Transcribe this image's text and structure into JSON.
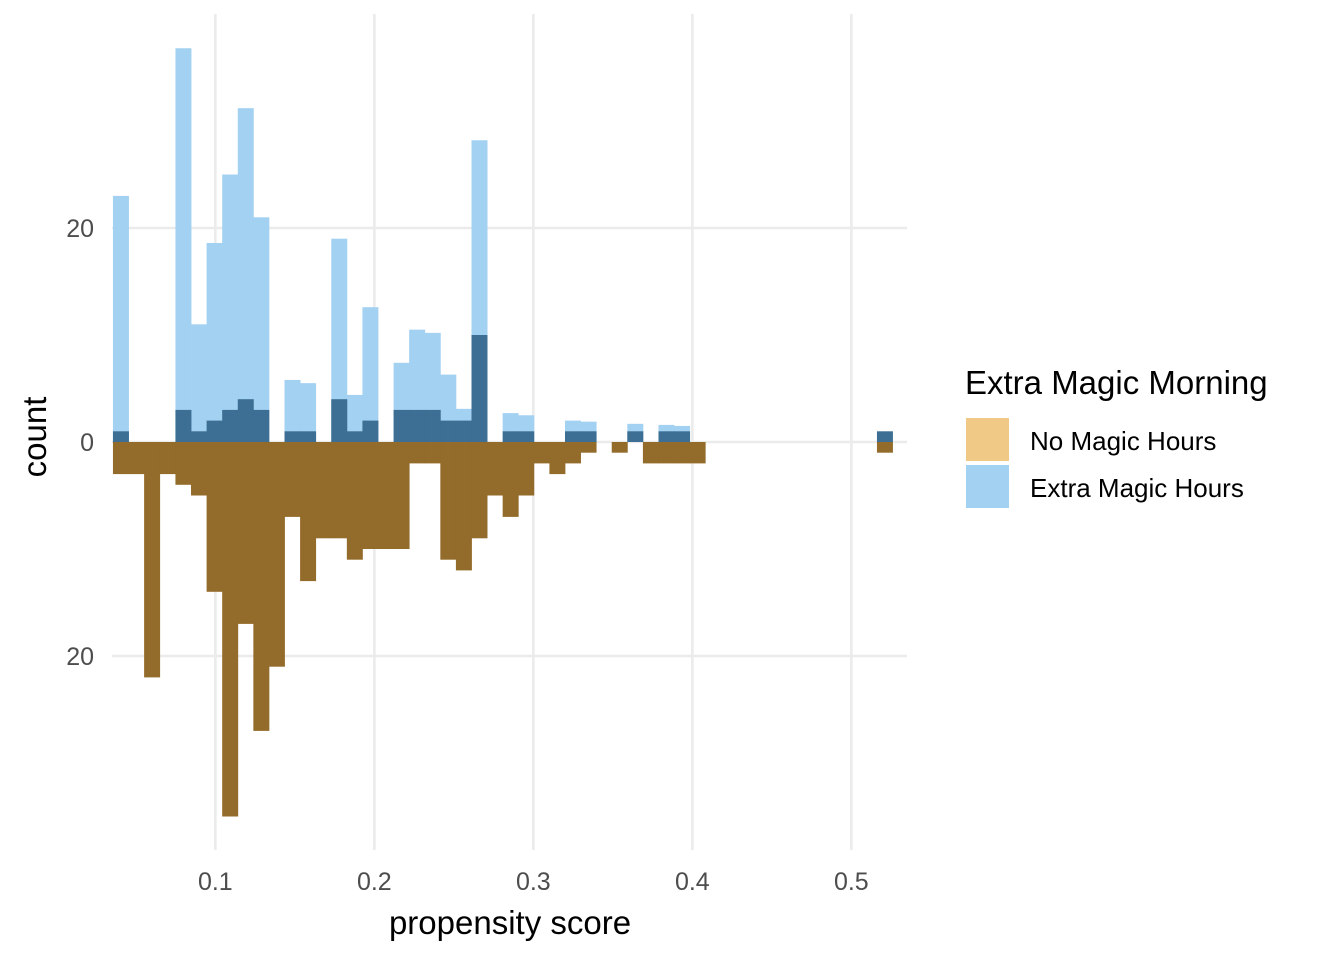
{
  "chart_data": {
    "type": "bar",
    "subtype": "mirrored histogram",
    "xlabel": "propensity score",
    "ylabel": "count",
    "xlim": [
      0.035,
      0.535
    ],
    "x_ticks": [
      0.1,
      0.2,
      0.3,
      0.4,
      0.5
    ],
    "x_tick_labels": [
      "0.1",
      "0.2",
      "0.3",
      "0.4",
      "0.5"
    ],
    "y_ticks": [
      20,
      0,
      -20
    ],
    "y_tick_labels": [
      "20",
      "0",
      "20"
    ],
    "ylim": [
      -38,
      36
    ],
    "grid": true,
    "legend": {
      "title": "Extra Magic Morning",
      "position": "right",
      "entries": [
        {
          "label": "No Magic Hours",
          "color": "#f0c987"
        },
        {
          "label": "Extra Magic Hours",
          "color": "#a3d1f2"
        }
      ]
    },
    "bin_width": 0.0098,
    "series": [
      {
        "name": "Extra Magic Hours",
        "color": "#a3d1f2",
        "bins": [
          {
            "x": 0.0405,
            "y": 23
          },
          {
            "x": 0.0798,
            "y": 36.8
          },
          {
            "x": 0.0896,
            "y": 11
          },
          {
            "x": 0.0994,
            "y": 18.6
          },
          {
            "x": 0.1092,
            "y": 25
          },
          {
            "x": 0.119,
            "y": 31.2
          },
          {
            "x": 0.1288,
            "y": 21
          },
          {
            "x": 0.1484,
            "y": 5.8
          },
          {
            "x": 0.1582,
            "y": 5.5
          },
          {
            "x": 0.168,
            "y": 0
          },
          {
            "x": 0.1778,
            "y": 19
          },
          {
            "x": 0.1876,
            "y": 4.4
          },
          {
            "x": 0.1974,
            "y": 12.6
          },
          {
            "x": 0.217,
            "y": 7.4
          },
          {
            "x": 0.2268,
            "y": 10.5
          },
          {
            "x": 0.2366,
            "y": 10.2
          },
          {
            "x": 0.2464,
            "y": 6.3
          },
          {
            "x": 0.2562,
            "y": 3.1
          },
          {
            "x": 0.266,
            "y": 28.2
          },
          {
            "x": 0.2856,
            "y": 2.7
          },
          {
            "x": 0.2954,
            "y": 2.5
          },
          {
            "x": 0.3248,
            "y": 2.0
          },
          {
            "x": 0.3346,
            "y": 1.9
          },
          {
            "x": 0.364,
            "y": 1.7
          },
          {
            "x": 0.3836,
            "y": 1.6
          },
          {
            "x": 0.3934,
            "y": 1.5
          }
        ]
      },
      {
        "name": "overlap (treated count)",
        "color": "#3d6e93",
        "bins": [
          {
            "x": 0.0405,
            "y": 1
          },
          {
            "x": 0.0798,
            "y": 3
          },
          {
            "x": 0.0896,
            "y": 1
          },
          {
            "x": 0.0994,
            "y": 2
          },
          {
            "x": 0.1092,
            "y": 3
          },
          {
            "x": 0.119,
            "y": 4
          },
          {
            "x": 0.1288,
            "y": 3
          },
          {
            "x": 0.1484,
            "y": 1
          },
          {
            "x": 0.1582,
            "y": 1
          },
          {
            "x": 0.1778,
            "y": 4
          },
          {
            "x": 0.1876,
            "y": 1
          },
          {
            "x": 0.1974,
            "y": 2
          },
          {
            "x": 0.217,
            "y": 3
          },
          {
            "x": 0.2268,
            "y": 3
          },
          {
            "x": 0.2366,
            "y": 3
          },
          {
            "x": 0.2464,
            "y": 2
          },
          {
            "x": 0.2562,
            "y": 2
          },
          {
            "x": 0.266,
            "y": 10
          },
          {
            "x": 0.2856,
            "y": 1
          },
          {
            "x": 0.2954,
            "y": 1
          },
          {
            "x": 0.3248,
            "y": 1
          },
          {
            "x": 0.3346,
            "y": 1
          },
          {
            "x": 0.364,
            "y": 1
          },
          {
            "x": 0.3836,
            "y": 1
          },
          {
            "x": 0.3934,
            "y": 1
          },
          {
            "x": 0.521,
            "y": 1
          }
        ]
      },
      {
        "name": "No Magic Hours",
        "color": "#936b2a",
        "bins": [
          {
            "x": 0.0405,
            "y": -3
          },
          {
            "x": 0.0503,
            "y": -3
          },
          {
            "x": 0.0601,
            "y": -22
          },
          {
            "x": 0.0699,
            "y": -3
          },
          {
            "x": 0.0798,
            "y": -4
          },
          {
            "x": 0.0896,
            "y": -5
          },
          {
            "x": 0.0994,
            "y": -14
          },
          {
            "x": 0.1092,
            "y": -35
          },
          {
            "x": 0.119,
            "y": -17
          },
          {
            "x": 0.1288,
            "y": -27
          },
          {
            "x": 0.1386,
            "y": -21
          },
          {
            "x": 0.1484,
            "y": -7
          },
          {
            "x": 0.1582,
            "y": -13
          },
          {
            "x": 0.168,
            "y": -9
          },
          {
            "x": 0.1778,
            "y": -9
          },
          {
            "x": 0.1876,
            "y": -11
          },
          {
            "x": 0.1974,
            "y": -10
          },
          {
            "x": 0.2072,
            "y": -10
          },
          {
            "x": 0.217,
            "y": -10
          },
          {
            "x": 0.2268,
            "y": -2
          },
          {
            "x": 0.2366,
            "y": -2
          },
          {
            "x": 0.2464,
            "y": -11
          },
          {
            "x": 0.2562,
            "y": -12
          },
          {
            "x": 0.266,
            "y": -9
          },
          {
            "x": 0.2758,
            "y": -5
          },
          {
            "x": 0.2856,
            "y": -7
          },
          {
            "x": 0.2954,
            "y": -5
          },
          {
            "x": 0.3052,
            "y": -2
          },
          {
            "x": 0.315,
            "y": -3
          },
          {
            "x": 0.3248,
            "y": -2
          },
          {
            "x": 0.3346,
            "y": -1
          },
          {
            "x": 0.3542,
            "y": -1
          },
          {
            "x": 0.3738,
            "y": -2
          },
          {
            "x": 0.3836,
            "y": -2
          },
          {
            "x": 0.3934,
            "y": -2
          },
          {
            "x": 0.4032,
            "y": -2
          },
          {
            "x": 0.521,
            "y": -1
          }
        ]
      }
    ]
  }
}
